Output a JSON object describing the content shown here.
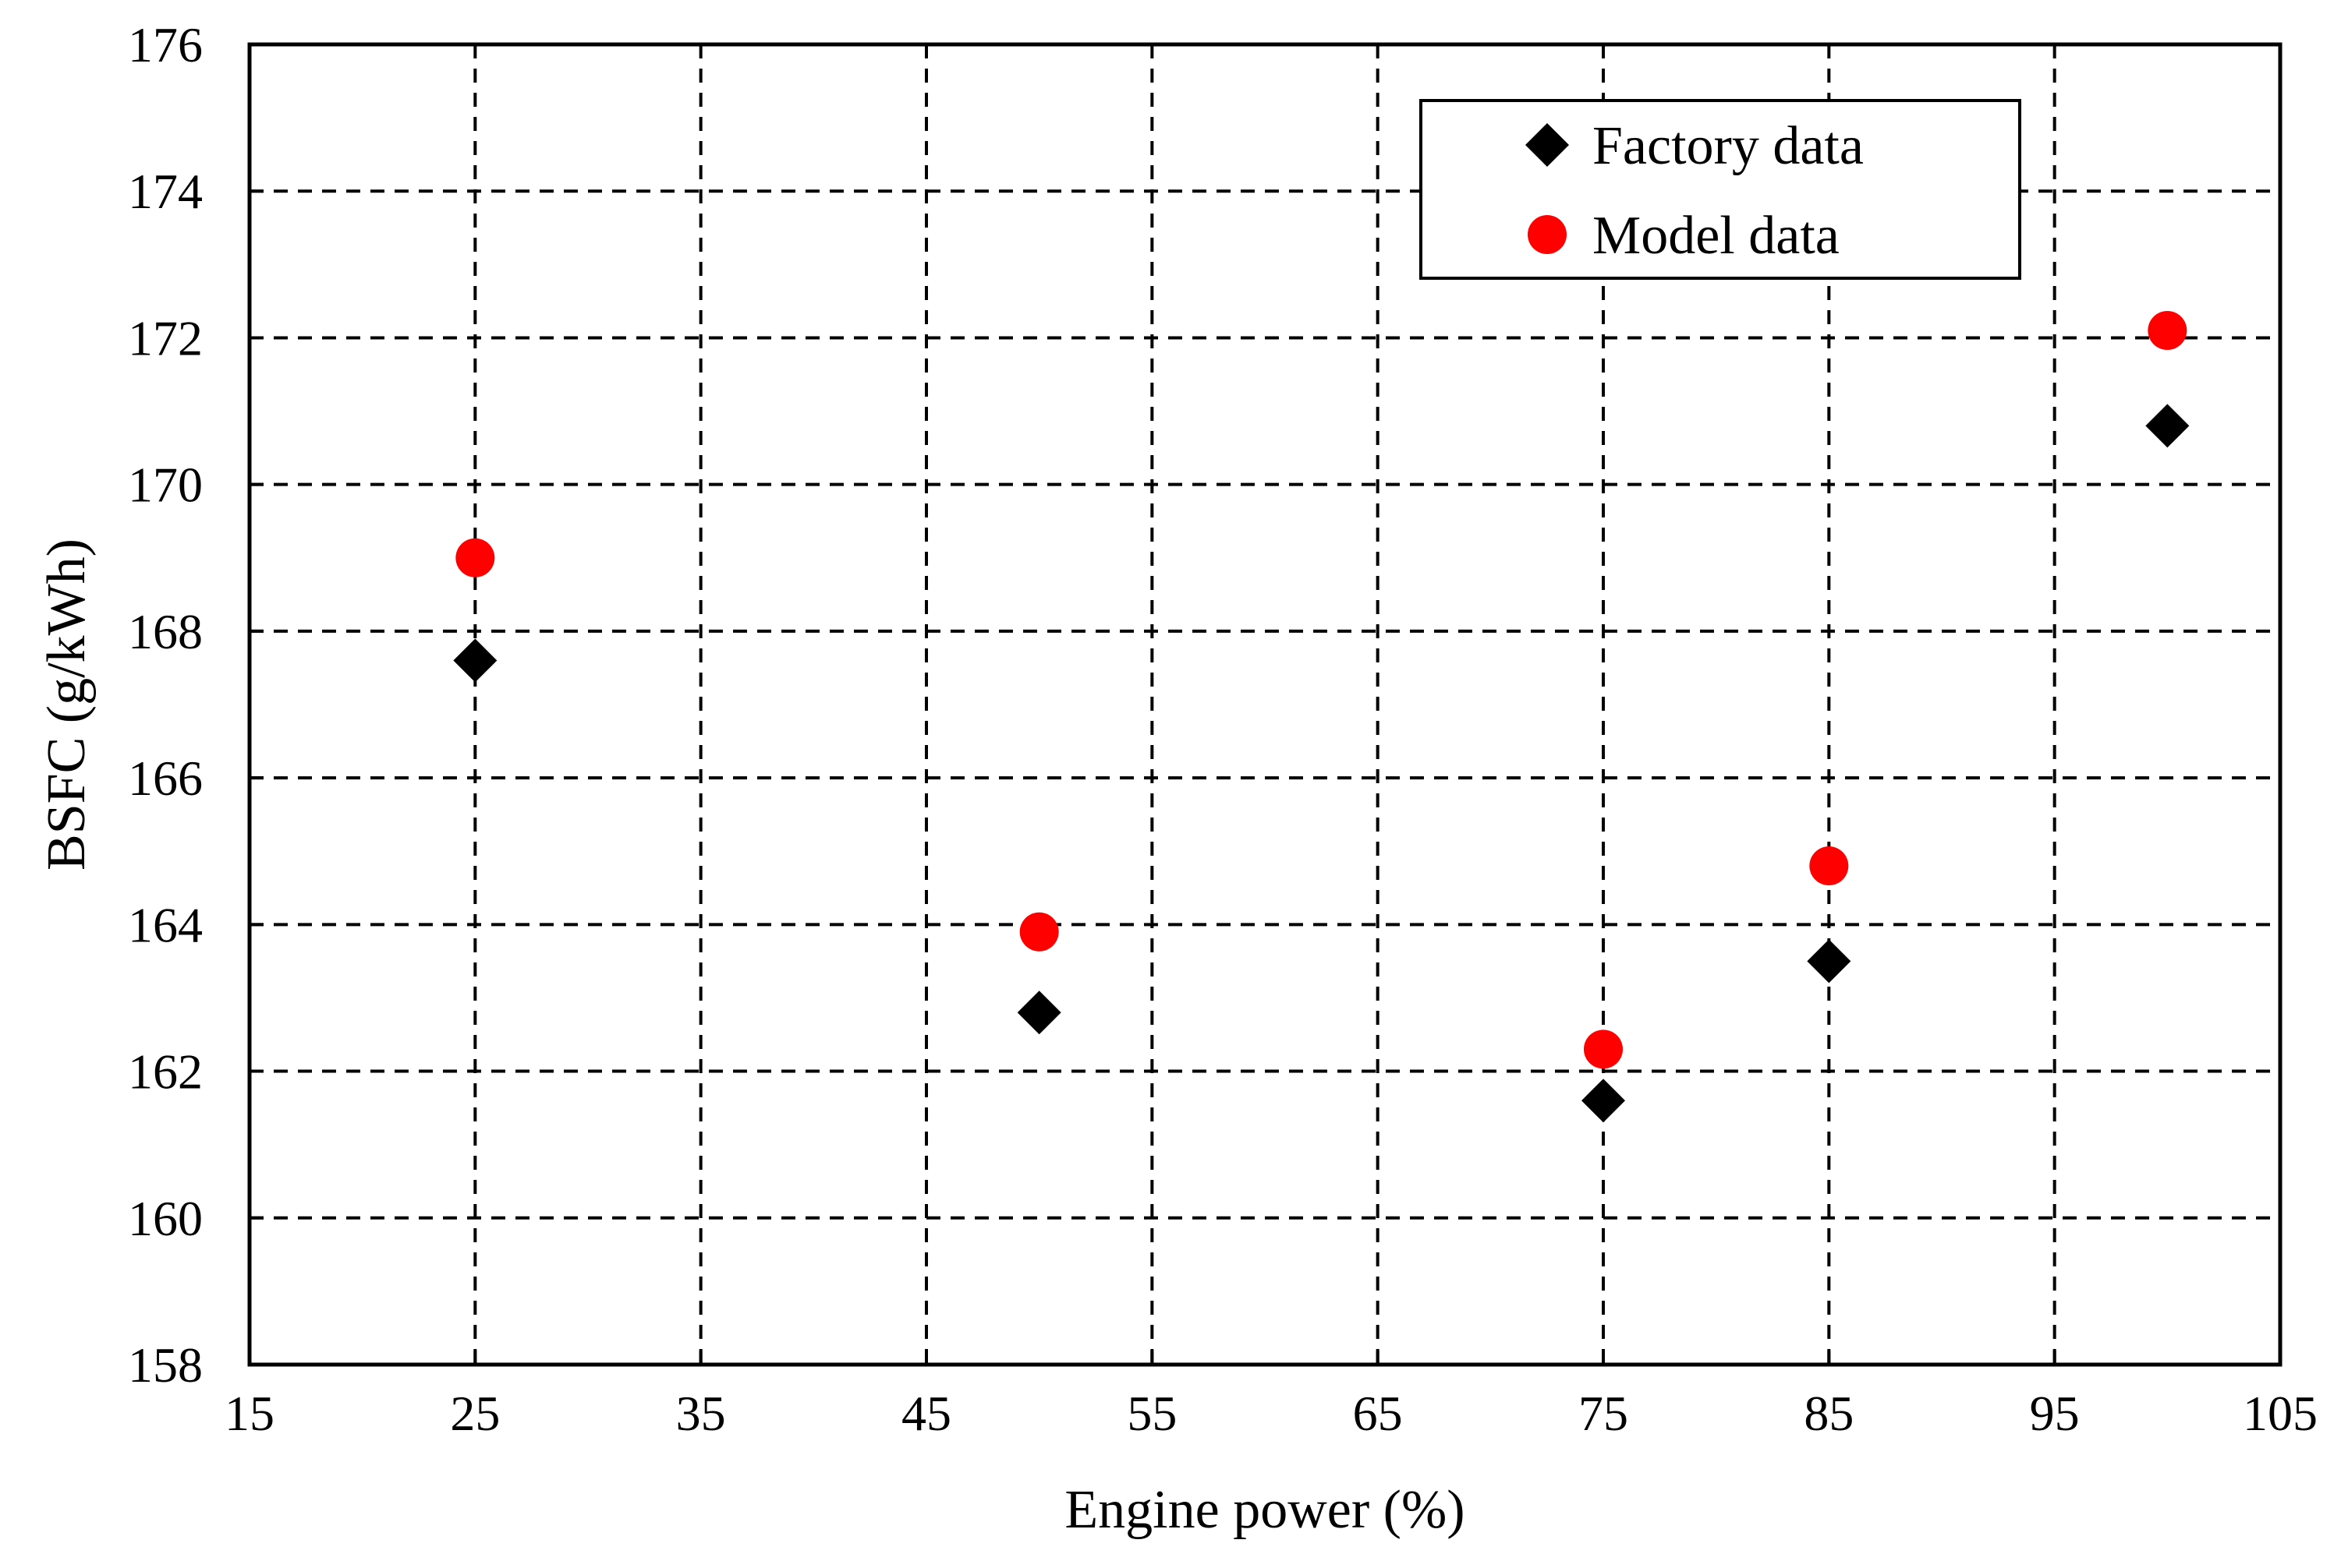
{
  "chart_data": {
    "type": "scatter",
    "title": "",
    "xlabel": "Engine power (%)",
    "ylabel": "BSFC (g/kWh)",
    "xlim": [
      15,
      105
    ],
    "ylim": [
      158,
      176
    ],
    "x_ticks": [
      15,
      25,
      35,
      45,
      55,
      65,
      75,
      85,
      95,
      105
    ],
    "y_ticks": [
      158,
      160,
      162,
      164,
      166,
      168,
      170,
      172,
      174,
      176
    ],
    "grid": "dashed, on",
    "legend_position": "top-right",
    "series": [
      {
        "name": "Factory data",
        "marker": "diamond",
        "color": "#000000",
        "x": [
          25,
          50,
          75,
          85,
          100
        ],
        "y": [
          167.6,
          162.8,
          161.6,
          163.5,
          170.8
        ]
      },
      {
        "name": "Model data",
        "marker": "circle",
        "color": "#ff0000",
        "x": [
          25,
          50,
          75,
          85,
          100
        ],
        "y": [
          169.0,
          163.9,
          162.3,
          164.8,
          172.1
        ]
      }
    ]
  }
}
